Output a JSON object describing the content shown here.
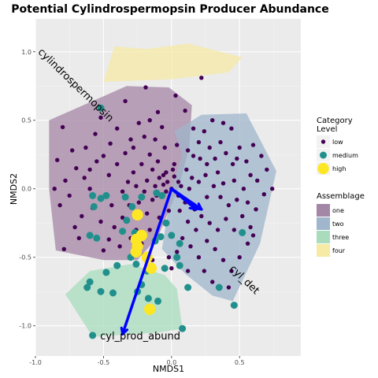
{
  "chart_data": {
    "type": "scatter",
    "title": "Potential Cylindrospermopsin Producer Abundance",
    "xlabel": "NMDS1",
    "ylabel": "NMDS2",
    "xlim": [
      -1.0,
      0.95
    ],
    "ylim": [
      -1.22,
      1.24
    ],
    "x_ticks": [
      -1.0,
      -0.5,
      0.0,
      0.5
    ],
    "x_tick_labels": [
      "-1.0",
      "-0.5",
      "0.0",
      "0.5"
    ],
    "y_ticks": [
      -1.0,
      -0.5,
      0.0,
      0.5,
      1.0
    ],
    "y_tick_labels": [
      "-1.0",
      "-0.5",
      "0.0",
      "0.5",
      "1.0"
    ],
    "grid": true,
    "colors": {
      "panel": "#ebebeb",
      "grid_major": "#ffffff",
      "grid_minor": "#f5f5f5",
      "low": "#440154",
      "medium": "#21908c",
      "high": "#fde725",
      "vector": "#0000ff",
      "hull_one": "#a486a6",
      "hull_two": "#9fb6cc",
      "hull_three": "#a8dcbd",
      "hull_four": "#f6eaa5"
    },
    "legend_category": {
      "title_line1": "Category",
      "title_line2": "Level",
      "placement": "right",
      "items": [
        {
          "key": "low",
          "label": "low"
        },
        {
          "key": "medium",
          "label": "medium"
        },
        {
          "key": "high",
          "label": "high"
        }
      ]
    },
    "legend_assemblage": {
      "title": "Assemblage",
      "placement": "right",
      "items": [
        {
          "key": "hull_one",
          "label": "one"
        },
        {
          "key": "hull_two",
          "label": "two"
        },
        {
          "key": "hull_three",
          "label": "three"
        },
        {
          "key": "hull_four",
          "label": "four"
        }
      ]
    },
    "hulls": [
      {
        "name": "one",
        "color_key": "hull_one",
        "points": [
          [
            -0.9,
            0.5
          ],
          [
            -0.33,
            0.75
          ],
          [
            -0.02,
            0.74
          ],
          [
            0.15,
            0.61
          ],
          [
            0.13,
            0.3
          ],
          [
            0.05,
            0.0
          ],
          [
            -0.1,
            -0.35
          ],
          [
            -0.25,
            -0.52
          ],
          [
            -0.5,
            -0.52
          ],
          [
            -0.85,
            -0.45
          ],
          [
            -0.9,
            0.0
          ]
        ]
      },
      {
        "name": "two",
        "color_key": "hull_two",
        "points": [
          [
            0.02,
            0.42
          ],
          [
            0.22,
            0.54
          ],
          [
            0.55,
            0.55
          ],
          [
            0.77,
            0.13
          ],
          [
            0.65,
            -0.4
          ],
          [
            0.45,
            -0.82
          ],
          [
            0.3,
            -0.78
          ],
          [
            0.1,
            -0.62
          ],
          [
            -0.07,
            -0.44
          ],
          [
            0.0,
            0.0
          ],
          [
            0.08,
            0.25
          ]
        ]
      },
      {
        "name": "three",
        "color_key": "hull_three",
        "points": [
          [
            -0.6,
            -0.6
          ],
          [
            -0.3,
            -0.55
          ],
          [
            -0.05,
            -0.63
          ],
          [
            0.04,
            -0.73
          ],
          [
            0.08,
            -1.02
          ],
          [
            -0.1,
            -1.05
          ],
          [
            -0.58,
            -1.08
          ],
          [
            -0.78,
            -0.77
          ]
        ]
      },
      {
        "name": "four",
        "color_key": "hull_four",
        "points": [
          [
            -0.42,
            1.04
          ],
          [
            -0.18,
            1.02
          ],
          [
            0.12,
            1.06
          ],
          [
            0.52,
            0.96
          ],
          [
            0.42,
            0.85
          ],
          [
            0.0,
            0.8
          ],
          [
            -0.5,
            0.78
          ]
        ]
      }
    ],
    "series": [
      {
        "name": "low",
        "color_key": "low",
        "size": 3,
        "points": [
          [
            0.22,
            0.81
          ],
          [
            -0.34,
            0.64
          ],
          [
            -0.19,
            0.74
          ],
          [
            0.03,
            0.68
          ],
          [
            0.1,
            0.57
          ],
          [
            -0.8,
            0.45
          ],
          [
            -0.73,
            0.28
          ],
          [
            -0.63,
            0.3
          ],
          [
            -0.5,
            0.24
          ],
          [
            -0.45,
            0.33
          ],
          [
            -0.55,
            0.2
          ],
          [
            -0.56,
            0.4
          ],
          [
            -0.6,
            0.0
          ],
          [
            -0.64,
            0.08
          ],
          [
            -0.7,
            0.15
          ],
          [
            -0.84,
            0.21
          ],
          [
            -0.75,
            -0.05
          ],
          [
            -0.82,
            -0.12
          ],
          [
            -0.66,
            -0.2
          ],
          [
            -0.71,
            -0.28
          ],
          [
            -0.79,
            -0.44
          ],
          [
            -0.5,
            -0.45
          ],
          [
            -0.46,
            -0.37
          ],
          [
            -0.42,
            -0.28
          ],
          [
            -0.36,
            -0.21
          ],
          [
            -0.28,
            0.12
          ],
          [
            -0.32,
            0.05
          ],
          [
            -0.36,
            -0.02
          ],
          [
            -0.24,
            0.48
          ],
          [
            -0.2,
            0.38
          ],
          [
            -0.16,
            0.5
          ],
          [
            -0.07,
            0.45
          ],
          [
            -0.12,
            0.36
          ],
          [
            -0.05,
            0.3
          ],
          [
            -0.1,
            0.2
          ],
          [
            -0.16,
            0.25
          ],
          [
            -0.22,
            0.18
          ],
          [
            -0.18,
            0.06
          ],
          [
            -0.11,
            -0.05
          ],
          [
            -0.06,
            0.03
          ],
          [
            0.02,
            0.09
          ],
          [
            -0.02,
            -0.16
          ],
          [
            -0.09,
            -0.21
          ],
          [
            -0.16,
            -0.3
          ],
          [
            -0.22,
            -0.4
          ],
          [
            -0.2,
            -0.48
          ],
          [
            -0.14,
            -0.52
          ],
          [
            -0.26,
            -0.3
          ],
          [
            -0.31,
            -0.12
          ],
          [
            -0.04,
            0.12
          ],
          [
            0.01,
            0.14
          ],
          [
            0.05,
            0.05
          ],
          [
            0.07,
            0.02
          ],
          [
            -0.03,
            0.05
          ],
          [
            -0.06,
            0.1
          ],
          [
            0.02,
            0.18
          ],
          [
            -0.14,
            0.14
          ],
          [
            -0.09,
            0.08
          ],
          [
            -0.12,
            0.02
          ],
          [
            -0.04,
            -0.02
          ],
          [
            0.0,
            0.0
          ],
          [
            0.05,
            -0.05
          ],
          [
            0.1,
            -0.1
          ],
          [
            0.13,
            0.0
          ],
          [
            0.15,
            0.08
          ],
          [
            0.2,
            0.05
          ],
          [
            0.25,
            0.1
          ],
          [
            0.31,
            0.02
          ],
          [
            0.36,
            -0.06
          ],
          [
            0.42,
            -0.12
          ],
          [
            0.48,
            -0.08
          ],
          [
            0.53,
            0.0
          ],
          [
            0.58,
            0.1
          ],
          [
            0.63,
            0.06
          ],
          [
            0.68,
            -0.04
          ],
          [
            0.74,
            0.0
          ],
          [
            0.66,
            0.24
          ],
          [
            0.6,
            0.32
          ],
          [
            0.55,
            0.2
          ],
          [
            0.5,
            0.3
          ],
          [
            0.45,
            0.18
          ],
          [
            0.4,
            0.26
          ],
          [
            0.36,
            0.34
          ],
          [
            0.32,
            0.22
          ],
          [
            0.28,
            0.3
          ],
          [
            0.24,
            0.42
          ],
          [
            0.3,
            0.5
          ],
          [
            0.38,
            0.48
          ],
          [
            0.44,
            0.44
          ],
          [
            0.2,
            0.34
          ],
          [
            0.16,
            0.24
          ],
          [
            0.12,
            0.28
          ],
          [
            0.11,
            0.14
          ],
          [
            0.17,
            -0.15
          ],
          [
            0.22,
            -0.2
          ],
          [
            0.28,
            -0.25
          ],
          [
            0.34,
            -0.3
          ],
          [
            0.4,
            -0.22
          ],
          [
            0.46,
            -0.3
          ],
          [
            0.52,
            -0.2
          ],
          [
            0.58,
            -0.28
          ],
          [
            0.62,
            -0.15
          ],
          [
            0.56,
            -0.4
          ],
          [
            0.5,
            -0.5
          ],
          [
            0.44,
            -0.6
          ],
          [
            0.38,
            -0.52
          ],
          [
            0.32,
            -0.44
          ],
          [
            0.26,
            -0.38
          ],
          [
            0.18,
            -0.3
          ],
          [
            0.12,
            -0.24
          ],
          [
            0.06,
            -0.16
          ],
          [
            0.08,
            -0.36
          ],
          [
            0.14,
            -0.42
          ],
          [
            0.2,
            -0.5
          ],
          [
            0.24,
            -0.6
          ],
          [
            0.3,
            -0.68
          ],
          [
            0.42,
            -0.72
          ],
          [
            0.04,
            -0.46
          ],
          [
            -0.02,
            -0.5
          ],
          [
            0.0,
            -0.58
          ],
          [
            0.12,
            -0.6
          ],
          [
            0.34,
            0.12
          ],
          [
            0.46,
            0.06
          ],
          [
            0.26,
            -0.06
          ],
          [
            0.38,
            0.04
          ],
          [
            0.56,
            -0.1
          ],
          [
            -0.52,
            0.52
          ],
          [
            -0.4,
            0.44
          ],
          [
            -0.3,
            0.36
          ],
          [
            -0.6,
            0.14
          ],
          [
            -0.46,
            0.1
          ],
          [
            -0.4,
            0.18
          ],
          [
            -0.34,
            0.26
          ],
          [
            -0.28,
            0.3
          ],
          [
            -0.86,
            0.0
          ],
          [
            -0.78,
            0.06
          ],
          [
            -0.68,
            -0.36
          ],
          [
            -0.58,
            -0.14
          ],
          [
            -0.52,
            -0.24
          ],
          [
            -0.44,
            -0.12
          ],
          [
            -0.38,
            -0.42
          ],
          [
            -0.3,
            -0.36
          ],
          [
            -0.24,
            -0.1
          ],
          [
            -0.18,
            -0.18
          ],
          [
            -0.26,
            0.02
          ],
          [
            -0.2,
            -0.02
          ],
          [
            -0.14,
            -0.08
          ],
          [
            0.16,
            0.44
          ],
          [
            0.21,
            0.22
          ],
          [
            0.26,
            0.18
          ],
          [
            0.6,
            -0.34
          ],
          [
            0.48,
            0.22
          ],
          [
            0.7,
            0.14
          ],
          [
            0.04,
            0.32
          ],
          [
            -0.1,
            0.56
          ]
        ]
      },
      {
        "name": "medium",
        "color_key": "medium",
        "size": 5,
        "points": [
          [
            -0.52,
            0.59
          ],
          [
            -0.58,
            -0.05
          ],
          [
            -0.52,
            -0.07
          ],
          [
            -0.57,
            -0.13
          ],
          [
            -0.48,
            -0.05
          ],
          [
            -0.34,
            -0.06
          ],
          [
            -0.29,
            -0.13
          ],
          [
            -0.22,
            -0.06
          ],
          [
            -0.11,
            -0.03
          ],
          [
            -0.07,
            -0.05
          ],
          [
            -0.04,
            -0.25
          ],
          [
            -0.08,
            -0.35
          ],
          [
            -0.6,
            -0.34
          ],
          [
            -0.55,
            -0.36
          ],
          [
            -0.33,
            -0.23
          ],
          [
            -0.27,
            -0.32
          ],
          [
            -0.36,
            -0.31
          ],
          [
            -0.3,
            -0.5
          ],
          [
            -0.26,
            -0.55
          ],
          [
            -0.12,
            -0.38
          ],
          [
            0.0,
            -0.34
          ],
          [
            0.06,
            -0.4
          ],
          [
            -0.05,
            -0.58
          ],
          [
            -0.18,
            -0.6
          ],
          [
            -0.4,
            -0.56
          ],
          [
            -0.48,
            -0.61
          ],
          [
            -0.62,
            -0.72
          ],
          [
            -0.6,
            -0.68
          ],
          [
            -0.43,
            -0.76
          ],
          [
            -0.52,
            -0.75
          ],
          [
            -0.22,
            -0.7
          ],
          [
            -0.25,
            -0.75
          ],
          [
            -0.17,
            -0.8
          ],
          [
            0.06,
            -0.56
          ],
          [
            0.12,
            -0.72
          ],
          [
            0.04,
            -0.5
          ],
          [
            0.52,
            -0.32
          ],
          [
            0.46,
            -0.85
          ],
          [
            0.35,
            -0.72
          ],
          [
            0.08,
            -1.02
          ],
          [
            -0.58,
            -1.07
          ],
          [
            -0.1,
            -0.82
          ]
        ]
      },
      {
        "name": "high",
        "color_key": "high",
        "size": 8,
        "points": [
          [
            -0.25,
            -0.19
          ],
          [
            -0.26,
            -0.37
          ],
          [
            -0.25,
            -0.42
          ],
          [
            -0.26,
            -0.46
          ],
          [
            -0.18,
            -0.5
          ],
          [
            -0.15,
            -0.58
          ],
          [
            -0.16,
            -0.88
          ],
          [
            -0.22,
            -0.34
          ]
        ]
      }
    ],
    "vectors": [
      {
        "name": "cylindrospermopsin",
        "end": [
          0.22,
          -0.15
        ],
        "label": "cylindrospermopsin",
        "label_pos": [
          -0.72,
          0.74
        ],
        "label_angle": 44
      },
      {
        "name": "cyl_det",
        "end": [
          0.18,
          -0.15
        ],
        "label": "cyl_det",
        "label_pos": [
          0.52,
          -0.68
        ],
        "label_angle": 44
      },
      {
        "name": "cyl_prod_abund",
        "end": [
          -0.36,
          -1.06
        ],
        "label": "cyl_prod_abund",
        "label_pos": [
          -0.23,
          -1.1
        ],
        "label_angle": 0
      }
    ],
    "vector_origin": [
      0.0,
      0.0
    ]
  }
}
